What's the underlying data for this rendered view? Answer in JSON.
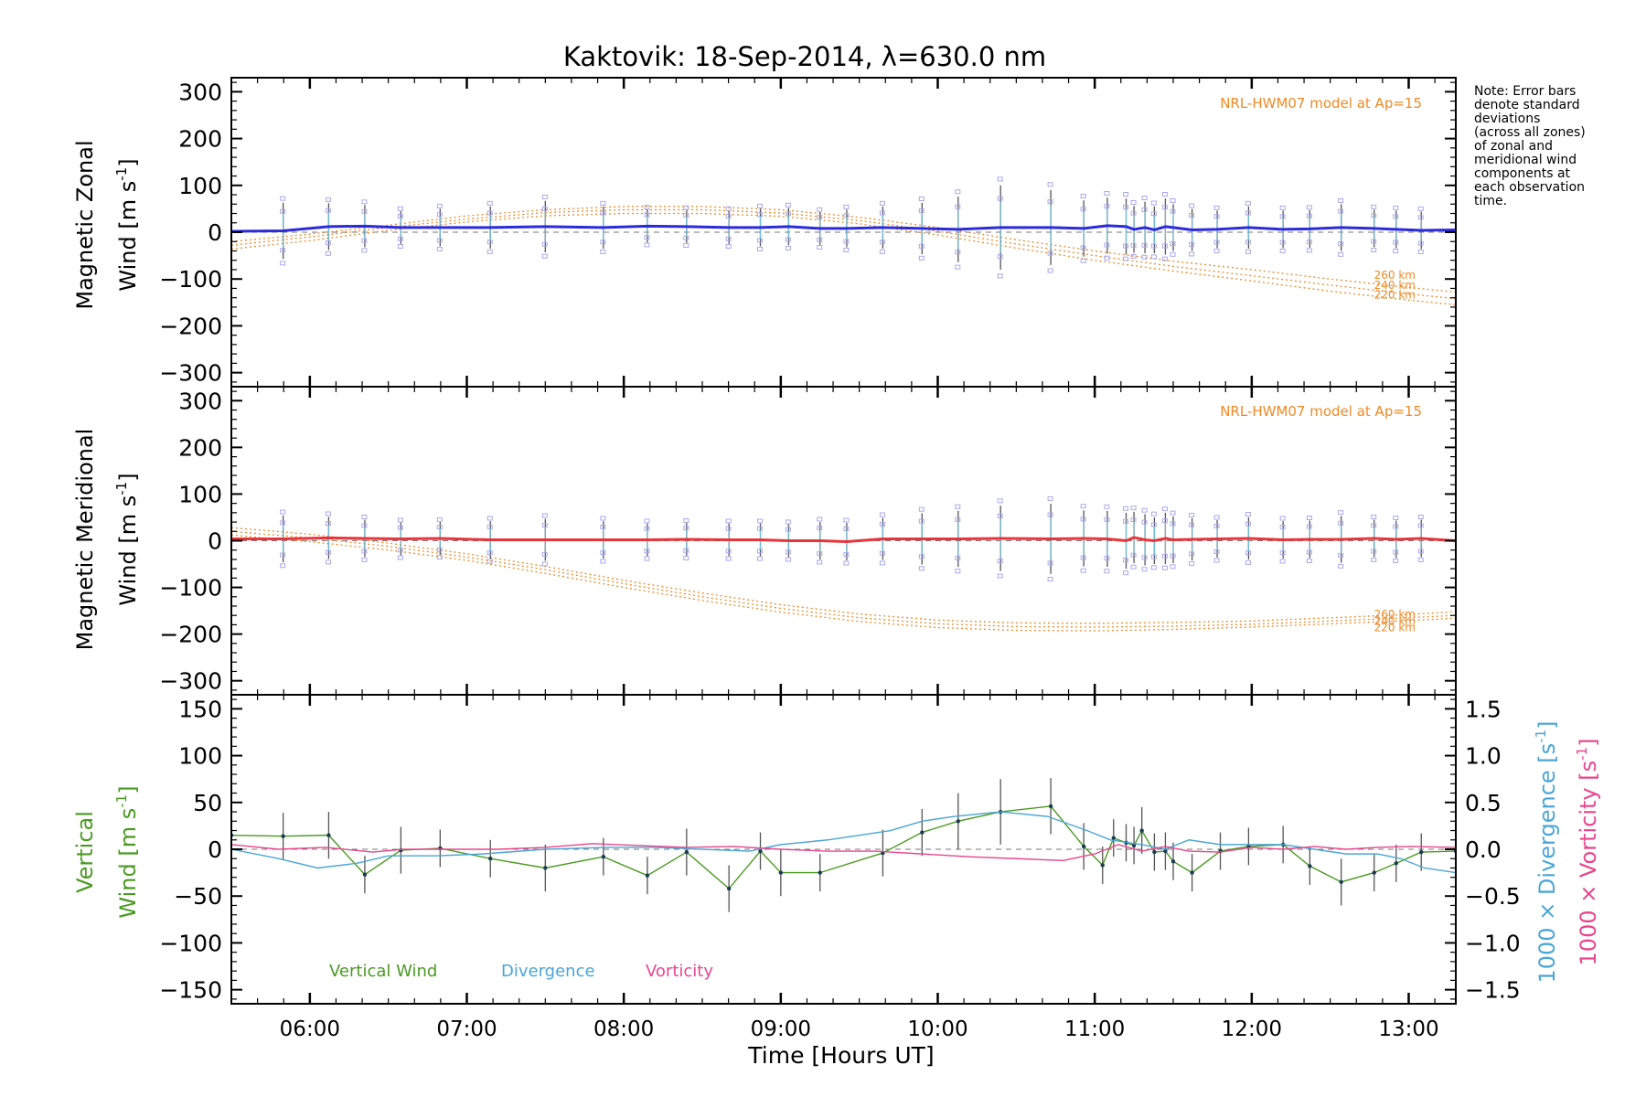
{
  "title": "Kaktovik: 18-Sep-2014, λ=630.0 nm",
  "note_lines": [
    "Note: Error bars",
    "denote standard",
    "deviations",
    "(across all zones)",
    "of zonal and",
    "meridional wind",
    "components at",
    "each observation",
    "time."
  ],
  "xlabel": "Time [Hours UT]",
  "colors": {
    "zonal": "#2b2bdc",
    "meridional": "#e8343a",
    "model": "#f08a24",
    "vertical": "#4a9a22",
    "divergence": "#4aa6d6",
    "vorticity": "#e8468c",
    "zone_marker": "#a9a9ee"
  },
  "panels": {
    "zonal": {
      "ylabel_line1": "Magnetic Zonal",
      "ylabel_line2": "Wind [m s",
      "ylabel_sup": "-1",
      "ylabel_end": "]",
      "model_label": "NRL-HWM07 model at Ap=15",
      "alt_labels": [
        "260 km",
        "240 km",
        "220 km"
      ]
    },
    "meridional": {
      "ylabel_line1": "Magnetic Meridional",
      "ylabel_line2": "Wind [m s",
      "ylabel_sup": "-1",
      "ylabel_end": "]",
      "model_label": "NRL-HWM07 model at Ap=15",
      "alt_labels": [
        "260 km",
        "240 km",
        "220 km"
      ]
    },
    "vertical": {
      "ylabel_line1": "Vertical",
      "ylabel_line2": "Wind [m s",
      "ylabel_sup": "-1",
      "ylabel_end": "]",
      "right_label1": "1000 × Divergence [s",
      "right_label2": "1000 × Vorticity [s",
      "right_sup": "-1",
      "right_end": "]",
      "legend": [
        "Vertical Wind",
        "Divergence",
        "Vorticity"
      ]
    }
  },
  "chart_data": [
    {
      "type": "line",
      "panel": "zonal",
      "ylabel": "Magnetic Zonal Wind [m s-1]",
      "xlim": [
        5.5,
        13.3
      ],
      "ylim": [
        -330,
        330
      ],
      "x_ticks": [
        6,
        7,
        8,
        9,
        10,
        11,
        12,
        13
      ],
      "y_ticks": [
        -300,
        -200,
        -100,
        0,
        100,
        200,
        300
      ],
      "series": [
        {
          "role": "zonal",
          "x": [
            5.5,
            5.83,
            6.12,
            6.35,
            6.58,
            6.83,
            7.15,
            7.5,
            7.87,
            8.15,
            8.4,
            8.67,
            8.87,
            9.05,
            9.25,
            9.42,
            9.65,
            9.9,
            10.13,
            10.4,
            10.72,
            10.93,
            11.08,
            11.2,
            11.25,
            11.32,
            11.38,
            11.45,
            11.5,
            11.62,
            11.78,
            11.98,
            12.2,
            12.37,
            12.57,
            12.78,
            12.92,
            13.08,
            13.3
          ],
          "y": [
            2,
            3,
            12,
            13,
            10,
            10,
            10,
            12,
            10,
            13,
            12,
            10,
            10,
            12,
            8,
            8,
            10,
            8,
            6,
            10,
            10,
            8,
            14,
            12,
            6,
            10,
            5,
            12,
            10,
            5,
            6,
            10,
            6,
            7,
            10,
            8,
            6,
            4,
            5
          ],
          "error": [
            0,
            60,
            50,
            45,
            35,
            40,
            45,
            55,
            45,
            35,
            35,
            35,
            40,
            40,
            35,
            40,
            45,
            55,
            70,
            90,
            80,
            60,
            60,
            60,
            50,
            55,
            50,
            60,
            50,
            45,
            40,
            45,
            40,
            40,
            50,
            40,
            40,
            40,
            0
          ]
        }
      ],
      "model": {
        "label": "NRL-HWM07 model at Ap=15",
        "altitudes": [
          "260 km",
          "240 km",
          "220 km"
        ],
        "x": [
          5.5,
          6.0,
          6.5,
          7.0,
          7.5,
          8.0,
          8.5,
          9.0,
          9.5,
          10.0,
          10.5,
          11.0,
          11.5,
          12.0,
          12.5,
          13.0,
          13.3
        ],
        "curves": [
          [
            -20,
            -4,
            15,
            35,
            48,
            55,
            55,
            48,
            32,
            10,
            -16,
            -40,
            -62,
            -80,
            -100,
            -118,
            -128
          ],
          [
            -28,
            -10,
            10,
            28,
            42,
            48,
            48,
            41,
            25,
            2,
            -25,
            -50,
            -73,
            -93,
            -113,
            -132,
            -142
          ],
          [
            -36,
            -18,
            4,
            22,
            35,
            40,
            40,
            34,
            18,
            -6,
            -34,
            -60,
            -83,
            -104,
            -126,
            -145,
            -155
          ]
        ]
      }
    },
    {
      "type": "line",
      "panel": "meridional",
      "ylabel": "Magnetic Meridional Wind [m s-1]",
      "xlim": [
        5.5,
        13.3
      ],
      "ylim": [
        -330,
        330
      ],
      "x_ticks": [
        6,
        7,
        8,
        9,
        10,
        11,
        12,
        13
      ],
      "y_ticks": [
        -300,
        -200,
        -100,
        0,
        100,
        200,
        300
      ],
      "series": [
        {
          "role": "meridional",
          "x": [
            5.5,
            5.83,
            6.12,
            6.35,
            6.58,
            6.83,
            7.15,
            7.5,
            7.87,
            8.15,
            8.4,
            8.67,
            8.87,
            9.05,
            9.25,
            9.42,
            9.65,
            9.9,
            10.13,
            10.4,
            10.72,
            10.93,
            11.08,
            11.2,
            11.25,
            11.32,
            11.38,
            11.45,
            11.5,
            11.62,
            11.78,
            11.98,
            12.2,
            12.37,
            12.57,
            12.78,
            12.92,
            13.08,
            13.3
          ],
          "y": [
            4,
            4,
            6,
            5,
            4,
            5,
            2,
            2,
            2,
            2,
            3,
            2,
            2,
            0,
            0,
            -2,
            4,
            4,
            4,
            5,
            4,
            5,
            4,
            0,
            7,
            2,
            0,
            5,
            2,
            3,
            4,
            5,
            2,
            3,
            3,
            5,
            3,
            5,
            0
          ],
          "error": [
            0,
            50,
            45,
            40,
            35,
            35,
            40,
            45,
            40,
            35,
            35,
            35,
            35,
            35,
            40,
            40,
            45,
            55,
            60,
            70,
            75,
            60,
            60,
            60,
            55,
            55,
            50,
            55,
            50,
            45,
            40,
            45,
            40,
            40,
            50,
            40,
            40,
            40,
            0
          ]
        }
      ],
      "model": {
        "label": "NRL-HWM07 model at Ap=15",
        "altitudes": [
          "260 km",
          "240 km",
          "220 km"
        ],
        "x": [
          5.5,
          6.0,
          6.5,
          7.0,
          7.5,
          8.0,
          8.5,
          9.0,
          9.5,
          10.0,
          10.5,
          11.0,
          11.5,
          12.0,
          12.5,
          13.0,
          13.3
        ],
        "curves": [
          [
            28,
            14,
            -5,
            -28,
            -55,
            -85,
            -112,
            -137,
            -157,
            -170,
            -176,
            -177,
            -175,
            -172,
            -165,
            -158,
            -152
          ],
          [
            20,
            6,
            -12,
            -35,
            -62,
            -92,
            -120,
            -145,
            -165,
            -178,
            -184,
            -185,
            -183,
            -179,
            -172,
            -165,
            -160
          ],
          [
            12,
            -2,
            -20,
            -42,
            -70,
            -100,
            -128,
            -153,
            -173,
            -186,
            -192,
            -193,
            -190,
            -185,
            -178,
            -171,
            -166
          ]
        ]
      }
    },
    {
      "type": "line",
      "panel": "vertical",
      "ylabel": "Vertical Wind [m s-1]",
      "y2label": "1000 x Divergence / Vorticity [s-1]",
      "xlim": [
        5.5,
        13.3
      ],
      "ylim": [
        -165,
        165
      ],
      "y2lim": [
        -1.65,
        1.65
      ],
      "x_ticks": [
        6,
        7,
        8,
        9,
        10,
        11,
        12,
        13
      ],
      "y_ticks": [
        -150,
        -100,
        -50,
        0,
        50,
        100,
        150
      ],
      "y2_ticks": [
        -1.5,
        -1.0,
        -0.5,
        0.0,
        0.5,
        1.0,
        1.5
      ],
      "series": [
        {
          "name": "Vertical Wind",
          "role": "vertical",
          "x": [
            5.5,
            5.83,
            6.12,
            6.35,
            6.58,
            6.83,
            7.15,
            7.5,
            7.87,
            8.15,
            8.4,
            8.67,
            8.87,
            9.0,
            9.25,
            9.65,
            9.9,
            10.13,
            10.4,
            10.72,
            10.93,
            11.05,
            11.12,
            11.2,
            11.25,
            11.3,
            11.38,
            11.45,
            11.5,
            11.62,
            11.8,
            11.98,
            12.2,
            12.37,
            12.57,
            12.78,
            12.92,
            13.08,
            13.3
          ],
          "y": [
            15,
            14,
            15,
            -27,
            -1,
            1,
            -10,
            -20,
            -8,
            -28,
            -3,
            -42,
            -2,
            -25,
            -25,
            -4,
            18,
            30,
            40,
            46,
            3,
            -17,
            12,
            7,
            4,
            20,
            -3,
            -2,
            -13,
            -25,
            -2,
            3,
            5,
            -18,
            -35,
            -25,
            -15,
            -3,
            -2
          ],
          "error": [
            0,
            25,
            25,
            20,
            25,
            20,
            20,
            25,
            20,
            20,
            25,
            25,
            20,
            25,
            20,
            25,
            25,
            30,
            35,
            30,
            25,
            20,
            20,
            20,
            20,
            25,
            20,
            20,
            20,
            20,
            20,
            20,
            20,
            20,
            25,
            20,
            20,
            20,
            0
          ]
        },
        {
          "name": "Divergence",
          "role": "divergence",
          "x": [
            5.5,
            5.8,
            6.05,
            6.3,
            6.5,
            6.8,
            7.1,
            7.5,
            7.9,
            8.2,
            8.5,
            8.8,
            9.0,
            9.3,
            9.5,
            9.7,
            9.9,
            10.1,
            10.4,
            10.7,
            10.95,
            11.1,
            11.3,
            11.45,
            11.6,
            11.8,
            12.0,
            12.2,
            12.4,
            12.6,
            12.8,
            12.95,
            13.1,
            13.3
          ],
          "y": [
            0.0,
            -0.1,
            -0.2,
            -0.15,
            -0.07,
            -0.07,
            -0.05,
            0.0,
            0.02,
            0.02,
            0.0,
            -0.02,
            0.05,
            0.1,
            0.15,
            0.2,
            0.3,
            0.35,
            0.4,
            0.35,
            0.2,
            0.1,
            0.05,
            0.0,
            0.1,
            0.05,
            0.05,
            0.05,
            0.0,
            -0.05,
            -0.05,
            -0.1,
            -0.2,
            -0.25
          ]
        },
        {
          "name": "Vorticity",
          "role": "vorticity",
          "x": [
            5.5,
            5.8,
            6.1,
            6.4,
            6.6,
            6.9,
            7.2,
            7.5,
            7.8,
            8.1,
            8.4,
            8.7,
            9.0,
            9.3,
            9.6,
            9.9,
            10.2,
            10.5,
            10.8,
            11.0,
            11.15,
            11.3,
            11.45,
            11.6,
            11.8,
            12.0,
            12.2,
            12.4,
            12.6,
            12.8,
            13.0,
            13.3
          ],
          "y": [
            0.05,
            0.0,
            0.02,
            -0.03,
            0.0,
            0.0,
            0.0,
            0.02,
            0.06,
            0.04,
            0.02,
            0.03,
            0.0,
            -0.02,
            -0.02,
            -0.05,
            -0.08,
            -0.1,
            -0.12,
            -0.05,
            0.05,
            -0.02,
            0.03,
            -0.02,
            -0.03,
            0.02,
            0.0,
            0.03,
            0.0,
            0.02,
            0.03,
            0.02
          ]
        }
      ]
    }
  ]
}
